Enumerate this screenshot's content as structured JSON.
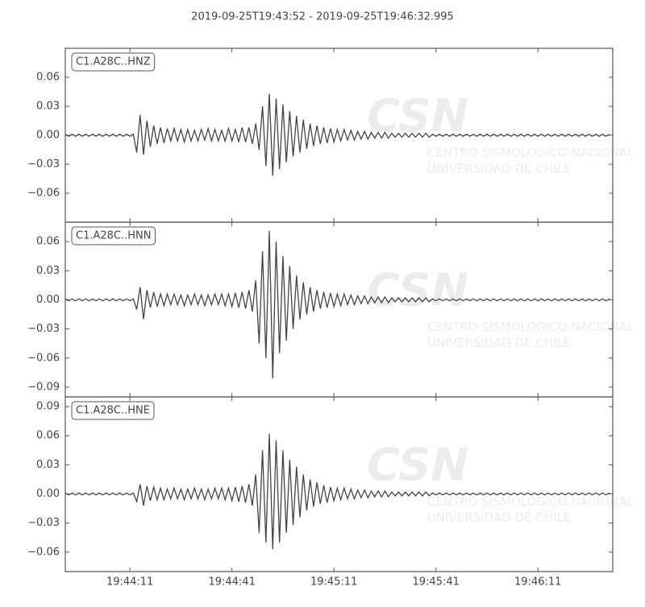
{
  "watermark": {
    "logo": "CSN",
    "line1": "CENTRO SISMOLOGICO NACIONAL",
    "line2": "UNIVERSIDAD DE CHILE"
  },
  "chart_data": [
    {
      "type": "line",
      "title": "2019-09-25T19:43:52  -  2019-09-25T19:46:32.995",
      "x": [
        0,
        1,
        2,
        3,
        4,
        5,
        6,
        7,
        8,
        9,
        10,
        11,
        12,
        13,
        14,
        15,
        16,
        17,
        18,
        19,
        20,
        21,
        22,
        23,
        24,
        25,
        26,
        27,
        28,
        29,
        30,
        31,
        32,
        33,
        34,
        35,
        36,
        37,
        38,
        39,
        40,
        41,
        42,
        43,
        44,
        45,
        46,
        47,
        48,
        49,
        50,
        51,
        52,
        53,
        54,
        55,
        56,
        57,
        58,
        59,
        60,
        61,
        62,
        63,
        64,
        65,
        66,
        67,
        68,
        69,
        70,
        71,
        72,
        73,
        74,
        75,
        76,
        77,
        78,
        79,
        80,
        81,
        82,
        83,
        84,
        85,
        86,
        87,
        88,
        89,
        90,
        91,
        92,
        93,
        94,
        95,
        96,
        97,
        98,
        99,
        100,
        101,
        102,
        103,
        104,
        105,
        106,
        107,
        108,
        109,
        110,
        111,
        112,
        113,
        114,
        115,
        116,
        117,
        118,
        119,
        120,
        121,
        122,
        123,
        124,
        125,
        126,
        127,
        128,
        129,
        130,
        131,
        132,
        133,
        134,
        135,
        136,
        137,
        138,
        139,
        140,
        141,
        142,
        143,
        144,
        145,
        146,
        147,
        148,
        149,
        150,
        151,
        152,
        153,
        154,
        155,
        156,
        157,
        158,
        159,
        160
      ],
      "series": [
        {
          "name": "C1.A28C..HNZ",
          "color": "#444444",
          "values": [
            0.001,
            -0.001,
            0.001,
            -0.001,
            0.001,
            -0.001,
            0.001,
            -0.001,
            0.001,
            -0.001,
            0.001,
            -0.001,
            0.001,
            -0.001,
            0.001,
            -0.001,
            0.001,
            -0.001,
            0.001,
            -0.001,
            0.001,
            -0.018,
            0.021,
            -0.02,
            0.015,
            -0.012,
            0.01,
            -0.009,
            0.008,
            -0.008,
            0.007,
            -0.006,
            0.007,
            -0.006,
            0.006,
            -0.007,
            0.006,
            -0.006,
            0.005,
            -0.006,
            0.006,
            -0.005,
            0.007,
            -0.006,
            0.006,
            -0.006,
            0.005,
            -0.006,
            0.007,
            -0.006,
            0.006,
            -0.007,
            0.008,
            -0.007,
            0.008,
            -0.009,
            0.012,
            -0.015,
            0.03,
            -0.032,
            0.043,
            -0.042,
            0.038,
            -0.035,
            0.032,
            -0.028,
            0.025,
            -0.022,
            0.02,
            -0.018,
            0.016,
            -0.014,
            0.012,
            -0.011,
            0.01,
            -0.009,
            0.008,
            -0.008,
            0.007,
            -0.007,
            0.006,
            -0.006,
            0.006,
            -0.005,
            0.005,
            -0.005,
            0.004,
            -0.004,
            0.004,
            -0.004,
            0.003,
            -0.003,
            0.003,
            -0.003,
            0.003,
            -0.003,
            0.002,
            -0.002,
            0.002,
            -0.002,
            0.002,
            -0.002,
            0.002,
            -0.002,
            0.002,
            -0.002,
            0.002,
            -0.002,
            0.001,
            -0.001,
            0.001,
            -0.001,
            0.001,
            -0.001,
            0.001,
            -0.001,
            0.001,
            -0.001,
            0.001,
            -0.001,
            0.001,
            -0.001,
            0.001,
            -0.001,
            0.001,
            -0.001,
            0.001,
            -0.001,
            0.001,
            -0.001,
            0.001,
            -0.001,
            0.001,
            -0.001,
            0.001,
            -0.001,
            0.001,
            -0.001,
            0.001,
            -0.001,
            0.001,
            -0.001,
            0.001,
            -0.001,
            0.001,
            -0.001,
            0.001,
            -0.001,
            0.001,
            -0.001,
            0.001,
            -0.001,
            0.001,
            -0.001,
            0.001,
            -0.001,
            0.001,
            -0.001,
            0.001,
            -0.001,
            0.001
          ]
        }
      ],
      "xlim": [
        0,
        160.995
      ],
      "ylim": [
        -0.09,
        0.09
      ],
      "yticks": [
        {
          "value": -0.06,
          "label": "−0.06"
        },
        {
          "value": -0.03,
          "label": "−0.03"
        },
        {
          "value": 0,
          "label": "0.00"
        },
        {
          "value": 0.03,
          "label": "0.03"
        },
        {
          "value": 0.06,
          "label": "0.06"
        }
      ]
    },
    {
      "type": "line",
      "x": [
        0,
        1,
        2,
        3,
        4,
        5,
        6,
        7,
        8,
        9,
        10,
        11,
        12,
        13,
        14,
        15,
        16,
        17,
        18,
        19,
        20,
        21,
        22,
        23,
        24,
        25,
        26,
        27,
        28,
        29,
        30,
        31,
        32,
        33,
        34,
        35,
        36,
        37,
        38,
        39,
        40,
        41,
        42,
        43,
        44,
        45,
        46,
        47,
        48,
        49,
        50,
        51,
        52,
        53,
        54,
        55,
        56,
        57,
        58,
        59,
        60,
        61,
        62,
        63,
        64,
        65,
        66,
        67,
        68,
        69,
        70,
        71,
        72,
        73,
        74,
        75,
        76,
        77,
        78,
        79,
        80,
        81,
        82,
        83,
        84,
        85,
        86,
        87,
        88,
        89,
        90,
        91,
        92,
        93,
        94,
        95,
        96,
        97,
        98,
        99,
        100,
        101,
        102,
        103,
        104,
        105,
        106,
        107,
        108,
        109,
        110,
        111,
        112,
        113,
        114,
        115,
        116,
        117,
        118,
        119,
        120,
        121,
        122,
        123,
        124,
        125,
        126,
        127,
        128,
        129,
        130,
        131,
        132,
        133,
        134,
        135,
        136,
        137,
        138,
        139,
        140,
        141,
        142,
        143,
        144,
        145,
        146,
        147,
        148,
        149,
        150,
        151,
        152,
        153,
        154,
        155,
        156,
        157,
        158,
        159,
        160
      ],
      "series": [
        {
          "name": "C1.A28C..HNN",
          "color": "#444444",
          "values": [
            0.001,
            -0.001,
            0.001,
            -0.001,
            0.001,
            -0.001,
            0.001,
            -0.001,
            0.001,
            -0.001,
            0.001,
            -0.001,
            0.001,
            -0.001,
            0.001,
            -0.001,
            0.001,
            -0.001,
            0.001,
            -0.001,
            0.001,
            -0.01,
            0.013,
            -0.02,
            0.01,
            -0.008,
            0.008,
            -0.007,
            0.006,
            -0.006,
            0.006,
            -0.005,
            0.006,
            -0.005,
            0.005,
            -0.006,
            0.005,
            -0.005,
            0.006,
            -0.005,
            0.005,
            -0.006,
            0.005,
            -0.005,
            0.006,
            -0.005,
            0.006,
            -0.006,
            0.006,
            -0.007,
            0.007,
            -0.008,
            0.008,
            -0.009,
            0.01,
            -0.012,
            0.02,
            -0.045,
            0.05,
            -0.06,
            0.071,
            -0.081,
            0.06,
            -0.055,
            0.045,
            -0.042,
            0.035,
            -0.03,
            0.025,
            -0.02,
            0.018,
            -0.015,
            0.013,
            -0.012,
            0.01,
            -0.009,
            0.008,
            -0.008,
            0.007,
            -0.007,
            0.006,
            -0.006,
            0.006,
            -0.005,
            0.005,
            -0.005,
            0.004,
            -0.004,
            0.004,
            -0.004,
            0.003,
            -0.003,
            0.003,
            -0.003,
            0.003,
            -0.003,
            0.002,
            -0.002,
            0.002,
            -0.002,
            0.002,
            -0.002,
            0.002,
            -0.002,
            0.002,
            -0.002,
            0.002,
            -0.002,
            0.001,
            -0.001,
            0.001,
            -0.001,
            0.001,
            -0.001,
            0.001,
            -0.001,
            0.001,
            -0.001,
            0.001,
            -0.001,
            0.001,
            -0.001,
            0.001,
            -0.001,
            0.001,
            -0.001,
            0.001,
            -0.001,
            0.001,
            -0.001,
            0.001,
            -0.001,
            0.001,
            -0.001,
            0.001,
            -0.001,
            0.001,
            -0.001,
            0.001,
            -0.001,
            0.001,
            -0.001,
            0.001,
            -0.001,
            0.001,
            -0.001,
            0.001,
            -0.001,
            0.001,
            -0.001,
            0.001,
            -0.001,
            0.001,
            -0.001,
            0.001,
            -0.001,
            0.001,
            -0.001,
            0.001,
            -0.001,
            0.001
          ]
        }
      ],
      "xlim": [
        0,
        160.995
      ],
      "ylim": [
        -0.1,
        0.08
      ],
      "yticks": [
        {
          "value": -0.09,
          "label": "−0.09"
        },
        {
          "value": -0.06,
          "label": "−0.06"
        },
        {
          "value": -0.03,
          "label": "−0.03"
        },
        {
          "value": 0,
          "label": "0.00"
        },
        {
          "value": 0.03,
          "label": "0.03"
        },
        {
          "value": 0.06,
          "label": "0.06"
        }
      ]
    },
    {
      "type": "line",
      "x": [
        0,
        1,
        2,
        3,
        4,
        5,
        6,
        7,
        8,
        9,
        10,
        11,
        12,
        13,
        14,
        15,
        16,
        17,
        18,
        19,
        20,
        21,
        22,
        23,
        24,
        25,
        26,
        27,
        28,
        29,
        30,
        31,
        32,
        33,
        34,
        35,
        36,
        37,
        38,
        39,
        40,
        41,
        42,
        43,
        44,
        45,
        46,
        47,
        48,
        49,
        50,
        51,
        52,
        53,
        54,
        55,
        56,
        57,
        58,
        59,
        60,
        61,
        62,
        63,
        64,
        65,
        66,
        67,
        68,
        69,
        70,
        71,
        72,
        73,
        74,
        75,
        76,
        77,
        78,
        79,
        80,
        81,
        82,
        83,
        84,
        85,
        86,
        87,
        88,
        89,
        90,
        91,
        92,
        93,
        94,
        95,
        96,
        97,
        98,
        99,
        100,
        101,
        102,
        103,
        104,
        105,
        106,
        107,
        108,
        109,
        110,
        111,
        112,
        113,
        114,
        115,
        116,
        117,
        118,
        119,
        120,
        121,
        122,
        123,
        124,
        125,
        126,
        127,
        128,
        129,
        130,
        131,
        132,
        133,
        134,
        135,
        136,
        137,
        138,
        139,
        140,
        141,
        142,
        143,
        144,
        145,
        146,
        147,
        148,
        149,
        150,
        151,
        152,
        153,
        154,
        155,
        156,
        157,
        158,
        159,
        160
      ],
      "series": [
        {
          "name": "C1.A28C..HNE",
          "color": "#444444",
          "values": [
            0.001,
            -0.001,
            0.001,
            -0.001,
            0.001,
            -0.001,
            0.001,
            -0.001,
            0.001,
            -0.001,
            0.001,
            -0.001,
            0.001,
            -0.001,
            0.001,
            -0.001,
            0.001,
            -0.001,
            0.001,
            -0.001,
            0.001,
            -0.008,
            0.01,
            -0.012,
            0.008,
            -0.007,
            0.007,
            -0.006,
            0.006,
            -0.006,
            0.005,
            -0.005,
            0.006,
            -0.005,
            0.005,
            -0.006,
            0.005,
            -0.005,
            0.006,
            -0.005,
            0.005,
            -0.006,
            0.005,
            -0.005,
            0.006,
            -0.005,
            0.006,
            -0.006,
            0.006,
            -0.007,
            0.007,
            -0.008,
            0.008,
            -0.009,
            0.01,
            -0.012,
            0.02,
            -0.04,
            0.045,
            -0.05,
            0.062,
            -0.057,
            0.055,
            -0.05,
            0.045,
            -0.04,
            0.035,
            -0.032,
            0.028,
            -0.024,
            0.02,
            -0.017,
            0.015,
            -0.013,
            0.012,
            -0.01,
            0.009,
            -0.009,
            0.007,
            -0.007,
            0.006,
            -0.006,
            0.006,
            -0.005,
            0.005,
            -0.005,
            0.004,
            -0.004,
            0.004,
            -0.004,
            0.003,
            -0.003,
            0.003,
            -0.003,
            0.003,
            -0.003,
            0.002,
            -0.002,
            0.002,
            -0.002,
            0.002,
            -0.002,
            0.002,
            -0.002,
            0.002,
            -0.002,
            0.002,
            -0.002,
            0.001,
            -0.001,
            0.001,
            -0.001,
            0.001,
            -0.001,
            0.001,
            -0.001,
            0.001,
            -0.001,
            0.001,
            -0.001,
            0.001,
            -0.001,
            0.001,
            -0.001,
            0.001,
            -0.001,
            0.001,
            -0.001,
            0.001,
            -0.001,
            0.001,
            -0.001,
            0.001,
            -0.001,
            0.001,
            -0.001,
            0.001,
            -0.001,
            0.001,
            -0.001,
            0.001,
            -0.001,
            0.001,
            -0.001,
            0.001,
            -0.001,
            0.001,
            -0.001,
            0.001,
            -0.001,
            0.001,
            -0.001,
            0.001,
            -0.001,
            0.001,
            -0.001,
            0.001,
            -0.001,
            0.001,
            -0.001,
            0.001
          ]
        }
      ],
      "xlim": [
        0,
        160.995
      ],
      "ylim": [
        -0.08,
        0.1
      ],
      "yticks": [
        {
          "value": -0.06,
          "label": "−0.06"
        },
        {
          "value": -0.03,
          "label": "−0.03"
        },
        {
          "value": 0,
          "label": "0.00"
        },
        {
          "value": 0.03,
          "label": "0.03"
        },
        {
          "value": 0.06,
          "label": "0.06"
        },
        {
          "value": 0.09,
          "label": "0.09"
        }
      ],
      "xticks": [
        {
          "value": 19,
          "label": "19:44:11"
        },
        {
          "value": 49,
          "label": "19:44:41"
        },
        {
          "value": 79,
          "label": "19:45:11"
        },
        {
          "value": 109,
          "label": "19:45:41"
        },
        {
          "value": 139,
          "label": "19:46:11"
        }
      ]
    }
  ]
}
